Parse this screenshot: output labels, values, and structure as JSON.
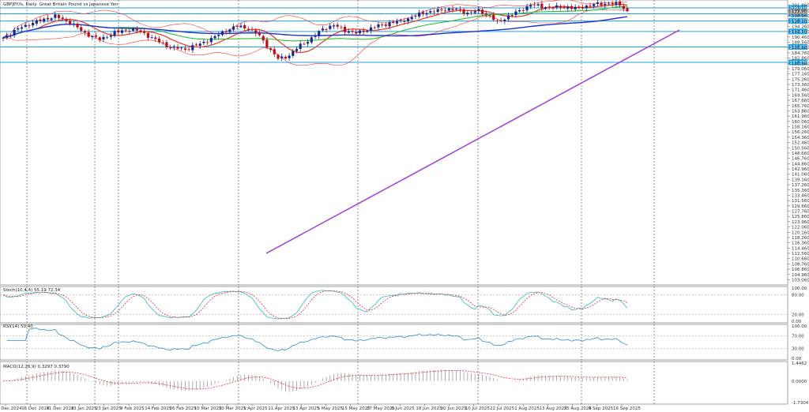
{
  "window": {
    "title": "GBPJPY.fs, Daily: Great Britain Pound vs Japanese Yen"
  },
  "colors": {
    "bull": "#1a2a8c",
    "bear": "#b3121b",
    "ma_fast": "#e8391e",
    "ma_mid": "#2bbf2b",
    "ma_slow": "#1f2fc9",
    "bands": "#ff3333",
    "trend": "#a23cd6",
    "hline": "#1aa3e8",
    "grid": "#b0b0b0",
    "stoch_main": "#37b6c6",
    "stoch_signal": "#d9363e",
    "rsi": "#2a8fd6",
    "macd_hist": "#999999",
    "macd_signal": "#d9363e"
  },
  "chart_data": [
    {
      "type": "candlestick",
      "panel": "main",
      "title": "GBPJPY.fs, Daily: Great Britain Pound vs Japanese Yen",
      "ylim": [
        101.2,
        203.76
      ],
      "y_ticks": [
        203.76,
        202.81,
        201.86,
        200.91,
        199.96,
        199.01,
        198.06,
        197.11,
        196.16,
        195.21,
        194.26,
        193.31,
        192.36,
        191.41,
        190.46,
        189.51,
        188.56,
        187.61,
        186.66,
        185.71,
        184.76,
        183.81,
        182.86,
        181.91,
        180.96,
        180.01,
        179.06,
        178.11,
        177.16,
        176.21,
        175.26,
        174.31,
        173.36,
        172.41,
        171.46,
        170.51,
        169.56,
        168.61,
        167.66,
        166.71,
        165.76,
        164.81,
        163.86,
        162.91,
        161.96,
        161.01,
        160.06,
        159.11,
        158.16,
        157.21,
        156.26,
        155.31,
        154.36,
        153.41,
        152.46,
        151.51,
        150.56,
        149.61,
        148.66,
        147.71,
        146.76,
        145.81,
        144.86,
        143.91,
        142.96,
        142.01,
        141.06,
        140.11,
        139.16,
        138.21,
        137.26,
        136.31,
        135.36,
        134.41,
        133.46,
        132.51,
        131.56,
        130.61,
        129.66,
        128.71,
        127.76,
        126.81,
        125.86,
        124.91,
        123.96,
        123.01,
        122.06,
        121.11,
        120.16,
        119.21,
        118.26,
        117.31,
        116.36,
        115.41,
        114.46,
        113.51,
        112.56,
        111.61,
        110.66,
        109.71,
        108.76,
        107.81,
        106.86,
        105.91,
        104.96,
        104.01,
        103.06,
        102.11,
        101.16
      ],
      "axis_labels": [
        "203.760",
        "202.810",
        "201.860",
        "200.910",
        "199.960",
        "199.010",
        "198.060",
        "197.110",
        "196.160",
        "195.210",
        "194.260",
        "193.310",
        "192.360",
        "191.410",
        "190.460",
        "189.510",
        "188.560",
        "187.610",
        "186.660",
        "185.710",
        "184.760",
        "183.810",
        "182.860",
        "181.910",
        "180.960",
        "180.010",
        "179.060",
        "178.110",
        "177.160",
        "176.210",
        "175.260",
        "174.310",
        "173.360",
        "172.410",
        "171.460",
        "170.510",
        "169.560",
        "168.610",
        "167.660",
        "166.710",
        "165.760",
        "164.810",
        "163.860",
        "162.910",
        "161.960",
        "161.010",
        "160.060",
        "159.110",
        "158.160",
        "157.210",
        "156.260",
        "155.310",
        "154.360",
        "153.410",
        "152.460",
        "151.510",
        "150.560",
        "149.610",
        "148.660",
        "147.710",
        "146.760",
        "145.810",
        "144.860",
        "143.910",
        "142.960",
        "142.010",
        "141.060",
        "140.110",
        "139.160",
        "138.210",
        "137.260",
        "136.310",
        "135.360",
        "134.410",
        "133.460",
        "132.510",
        "131.560",
        "130.610",
        "129.660",
        "128.710",
        "127.760",
        "126.810",
        "125.860",
        "124.910",
        "123.960",
        "123.010",
        "122.060",
        "121.110",
        "120.160",
        "119.210",
        "118.260",
        "117.310",
        "116.360",
        "115.410",
        "114.460",
        "113.510",
        "112.560",
        "111.610",
        "110.660",
        "109.710",
        "108.760",
        "107.810",
        "106.860",
        "105.910",
        "104.960",
        "104.010",
        "103.060",
        "102.110",
        "101.160"
      ],
      "horizontal_levels": [
        {
          "value": 200.91,
          "label": "200.910"
        },
        {
          "value": 198.79,
          "label": "198.790"
        },
        {
          "value": 196.2,
          "label": "196.200"
        },
        {
          "value": 192.43,
          "label": "192.430"
        },
        {
          "value": 186.87,
          "label": "186.870"
        },
        {
          "value": 181.33,
          "label": "181.330"
        }
      ],
      "current_price": {
        "value": 199.61,
        "label": "199.610"
      },
      "x_labels": [
        "4 Dec 2024",
        "16 Dec 2024",
        "31 Dec 2024",
        "13 Jan 2025",
        "23 Jan 2025",
        "4 Feb 2025",
        "14 Feb 2025",
        "26 Feb 2025",
        "10 Mar 2025",
        "20 Mar 2025",
        "1 Apr 2025",
        "11 Apr 2025",
        "23 Apr 2025",
        "5 May 2025",
        "15 May 2025",
        "27 May 2025",
        "6 Jun 2025",
        "18 Jun 2025",
        "30 Jun 2025",
        "10 Jul 2025",
        "22 Jul 2025",
        "1 Aug 2025",
        "13 Aug 2025",
        "25 Aug 2025",
        "4 Sep 2025",
        "16 Sep 2025"
      ],
      "close_waypoints": [
        [
          0,
          190.2
        ],
        [
          5,
          194.1
        ],
        [
          10,
          196.4
        ],
        [
          14,
          197.9
        ],
        [
          18,
          195.7
        ],
        [
          22,
          191.8
        ],
        [
          26,
          189.5
        ],
        [
          30,
          192.0
        ],
        [
          34,
          193.2
        ],
        [
          37,
          192.4
        ],
        [
          41,
          189.4
        ],
        [
          45,
          186.7
        ],
        [
          49,
          186.1
        ],
        [
          53,
          187.9
        ],
        [
          57,
          190.5
        ],
        [
          60,
          192.8
        ],
        [
          63,
          194.3
        ],
        [
          66,
          193.6
        ],
        [
          69,
          190.8
        ],
        [
          72,
          185.6
        ],
        [
          74,
          182.6
        ],
        [
          77,
          183.8
        ],
        [
          80,
          187.5
        ],
        [
          83,
          189.9
        ],
        [
          86,
          193.4
        ],
        [
          89,
          194.6
        ],
        [
          92,
          192.9
        ],
        [
          95,
          191.8
        ],
        [
          98,
          193.1
        ],
        [
          101,
          194.5
        ],
        [
          104,
          195.4
        ],
        [
          107,
          196.1
        ],
        [
          110,
          197.5
        ],
        [
          113,
          199.2
        ],
        [
          116,
          199.6
        ],
        [
          119,
          200.5
        ],
        [
          122,
          200.3
        ],
        [
          125,
          199.1
        ],
        [
          128,
          199.9
        ],
        [
          131,
          198.0
        ],
        [
          133,
          195.6
        ],
        [
          136,
          198.0
        ],
        [
          139,
          199.8
        ],
        [
          142,
          202.1
        ],
        [
          145,
          201.4
        ],
        [
          148,
          201.0
        ],
        [
          151,
          201.3
        ],
        [
          154,
          200.7
        ],
        [
          157,
          201.6
        ],
        [
          160,
          202.3
        ],
        [
          163,
          202.5
        ],
        [
          166,
          202.1
        ],
        [
          168,
          199.61
        ]
      ],
      "indicators": [
        "Moving Average (fast)",
        "Moving Average (mid)",
        "Moving Average (slow)",
        "Bollinger Bands",
        "Trend line"
      ]
    },
    {
      "type": "line",
      "panel": "stochastic",
      "title": "Stoch(10,4,4) 55.19 72.34",
      "ylim": [
        0,
        100
      ],
      "y_ticks": [
        100,
        80,
        20,
        0
      ],
      "axis_labels": [
        "100.00",
        "80.00",
        "20.00",
        "0.00"
      ],
      "series": [
        {
          "name": "55.19",
          "role": "main"
        },
        {
          "name": "72.34",
          "role": "signal"
        }
      ]
    },
    {
      "type": "line",
      "panel": "rsi",
      "title": "RSI(14) 50.40",
      "ylim": [
        0,
        100
      ],
      "y_ticks": [
        100,
        70,
        30,
        0
      ],
      "axis_labels": [
        "100.00",
        "70.00",
        "30.00",
        "0.00"
      ],
      "series": [
        {
          "name": "50.40"
        }
      ]
    },
    {
      "type": "bar",
      "panel": "macd",
      "title": "MACD(12,26,9) 0.3297 0.3790",
      "ylim": [
        -1.7304,
        1.4462
      ],
      "y_ticks": [
        1.4462,
        0,
        -1.7304
      ],
      "axis_labels": [
        "1.4462",
        "0.0000",
        "-1.7304"
      ],
      "series": [
        {
          "name": "0.3297",
          "role": "histogram"
        },
        {
          "name": "0.3790",
          "role": "signal"
        }
      ]
    }
  ]
}
